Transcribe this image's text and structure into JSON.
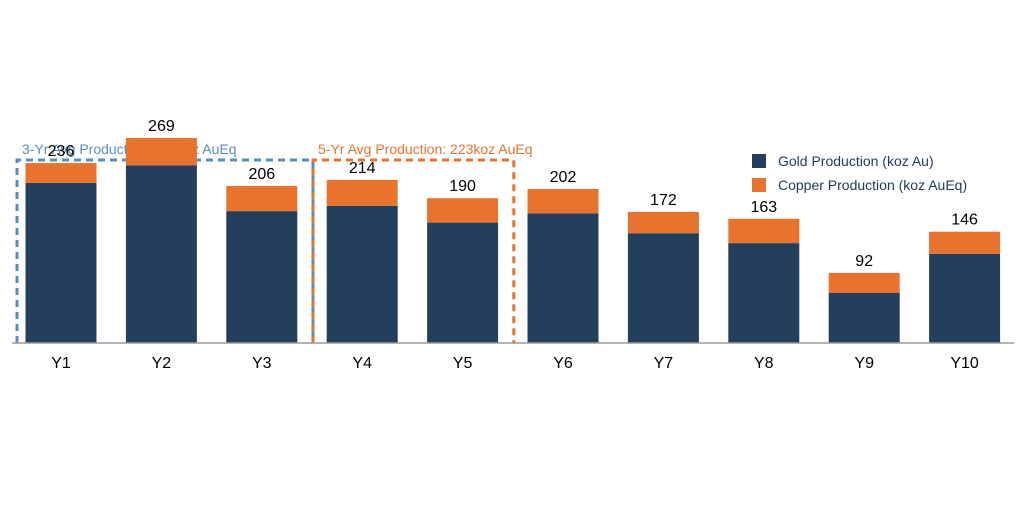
{
  "chart_data": {
    "type": "bar",
    "stacked": true,
    "categories": [
      "Y1",
      "Y2",
      "Y3",
      "Y4",
      "Y5",
      "Y6",
      "Y7",
      "Y8",
      "Y9",
      "Y10"
    ],
    "series": [
      {
        "name": "Gold Production (koz Au)",
        "color": "#243f5c",
        "values": [
          210,
          233,
          173,
          180,
          158,
          170,
          144,
          131,
          66,
          117
        ]
      },
      {
        "name": "Copper Production (koz AuEq)",
        "color": "#e8732e",
        "values": [
          26,
          36,
          33,
          34,
          32,
          32,
          28,
          32,
          26,
          29
        ]
      }
    ],
    "totals": [
      236,
      269,
      206,
      214,
      190,
      202,
      172,
      163,
      92,
      146
    ],
    "ylim": [
      0,
      450
    ],
    "grid": false,
    "legend_position": "top-right",
    "annotations": [
      {
        "label": "3-Yr Avg Production: 237koz AuEq",
        "color": "#5b8cbf",
        "from_category": "Y1",
        "to_category": "Y3"
      },
      {
        "label": "5-Yr Avg Production: 223koz AuEq",
        "color": "#e8732e",
        "from_category": "Y4",
        "to_category": "Y5"
      }
    ]
  }
}
